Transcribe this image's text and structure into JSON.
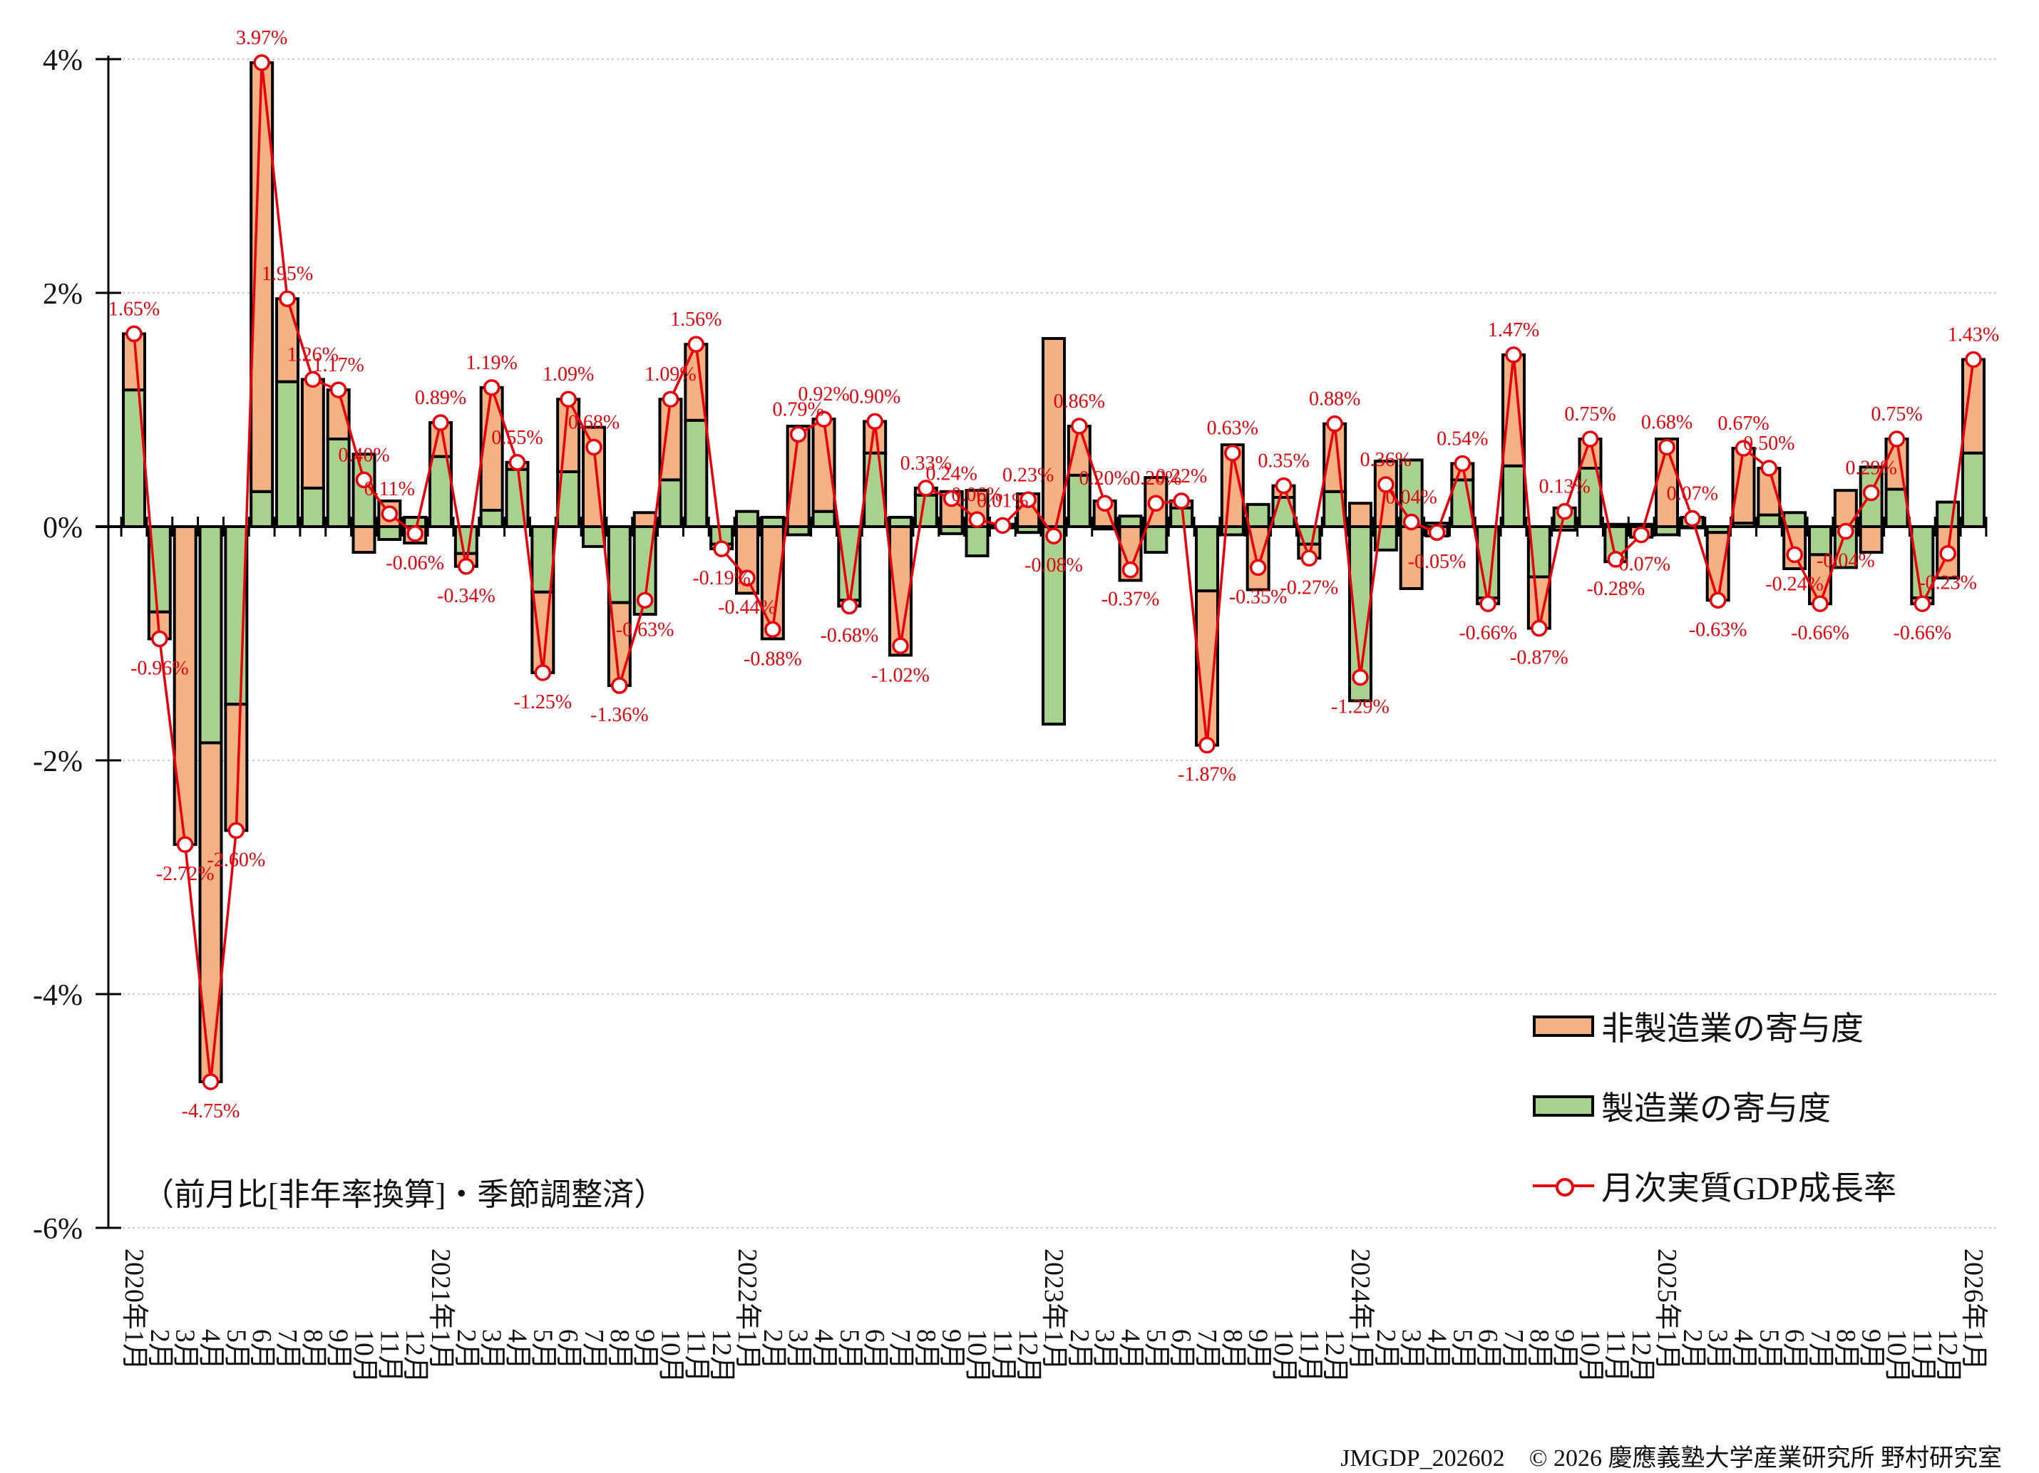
{
  "chart_data": {
    "type": "bar+line",
    "title": "",
    "subtitle": "（前月比[非年率換算]・季節調整済）",
    "xlabel": "",
    "ylabel": "",
    "ylim": [
      -6,
      4
    ],
    "y_ticks": [
      4,
      2,
      0,
      -2,
      -4,
      -6
    ],
    "y_tick_labels": [
      "4%",
      "2%",
      "0%",
      "-2%",
      "-4%",
      "-6%"
    ],
    "grid": "horizontal dotted",
    "legend_position": "lower right",
    "legend": [
      {
        "name": "非製造業の寄与度",
        "type": "bar",
        "color": "#f4b183"
      },
      {
        "name": "製造業の寄与度",
        "type": "bar",
        "color": "#a9d18e"
      },
      {
        "name": "月次実質GDP成長率",
        "type": "line",
        "color": "#e8000b"
      }
    ],
    "categories": [
      "2020年1月",
      "2月",
      "3月",
      "4月",
      "5月",
      "6月",
      "7月",
      "8月",
      "9月",
      "10月",
      "11月",
      "12月",
      "2021年1月",
      "2月",
      "3月",
      "4月",
      "5月",
      "6月",
      "7月",
      "8月",
      "9月",
      "10月",
      "11月",
      "12月",
      "2022年1月",
      "2月",
      "3月",
      "4月",
      "5月",
      "6月",
      "7月",
      "8月",
      "9月",
      "10月",
      "11月",
      "12月",
      "2023年1月",
      "2月",
      "3月",
      "4月",
      "5月",
      "6月",
      "7月",
      "8月",
      "9月",
      "10月",
      "11月",
      "12月",
      "2024年1月",
      "2月",
      "3月",
      "4月",
      "5月",
      "6月",
      "7月",
      "8月",
      "9月",
      "10月",
      "11月",
      "12月",
      "2025年1月",
      "2月",
      "3月",
      "4月",
      "5月",
      "6月",
      "7月",
      "8月",
      "9月",
      "10月",
      "11月",
      "12月",
      "2026年1月"
    ],
    "series": [
      {
        "name": "月次実質GDP成長率",
        "type": "line",
        "values": [
          1.65,
          -0.96,
          -2.72,
          -4.75,
          -2.6,
          3.97,
          1.95,
          1.26,
          1.17,
          0.4,
          0.11,
          -0.06,
          0.89,
          -0.34,
          1.19,
          0.55,
          -1.25,
          1.09,
          0.68,
          -1.36,
          -0.63,
          1.09,
          1.56,
          -0.19,
          -0.44,
          -0.88,
          0.79,
          0.92,
          -0.68,
          0.9,
          -1.02,
          0.33,
          0.24,
          0.06,
          0.01,
          0.23,
          -0.08,
          0.86,
          0.2,
          -0.37,
          0.2,
          0.22,
          -1.87,
          0.63,
          -0.35,
          0.35,
          -0.27,
          0.88,
          -1.29,
          0.36,
          0.04,
          -0.05,
          0.54,
          -0.66,
          1.47,
          -0.87,
          0.13,
          0.75,
          -0.28,
          -0.07,
          0.68,
          0.07,
          -0.63,
          0.67,
          0.5,
          -0.24,
          -0.66,
          -0.04,
          0.29,
          0.75,
          -0.66,
          -0.23,
          1.43
        ]
      },
      {
        "name": "製造業の寄与度",
        "type": "bar",
        "values": [
          1.17,
          -0.73,
          0.0,
          -1.85,
          -1.52,
          0.3,
          1.24,
          0.33,
          0.75,
          0.62,
          -0.11,
          0.08,
          0.6,
          -0.23,
          0.14,
          0.49,
          -0.56,
          0.47,
          -0.17,
          -0.65,
          -0.75,
          0.4,
          0.91,
          -0.15,
          0.13,
          0.08,
          -0.07,
          0.13,
          -0.63,
          0.63,
          0.08,
          0.27,
          -0.06,
          -0.25,
          -0.01,
          -0.05,
          -1.69,
          0.44,
          -0.02,
          0.09,
          -0.22,
          0.16,
          -0.55,
          -0.07,
          0.19,
          0.25,
          -0.15,
          0.3,
          -1.49,
          -0.2,
          0.57,
          0.03,
          0.4,
          -0.61,
          0.52,
          -0.43,
          0.16,
          0.5,
          -0.3,
          0.02,
          -0.07,
          0.08,
          -0.05,
          0.03,
          0.1,
          0.12,
          -0.24,
          -0.35,
          0.51,
          0.32,
          -0.61,
          0.21,
          0.63
        ]
      },
      {
        "name": "非製造業の寄与度",
        "type": "bar",
        "values": [
          0.48,
          -0.23,
          -2.72,
          -2.9,
          -1.08,
          3.67,
          0.71,
          0.93,
          0.42,
          -0.22,
          0.22,
          -0.14,
          0.29,
          -0.11,
          1.05,
          0.06,
          -0.69,
          0.62,
          0.85,
          -0.71,
          0.12,
          0.69,
          0.65,
          -0.04,
          -0.57,
          -0.96,
          0.86,
          0.79,
          -0.05,
          0.27,
          -1.1,
          0.06,
          0.3,
          0.31,
          0.02,
          0.28,
          1.61,
          0.42,
          0.22,
          -0.46,
          0.42,
          0.06,
          -1.32,
          0.7,
          -0.54,
          0.1,
          -0.12,
          0.58,
          0.2,
          0.56,
          -0.53,
          -0.08,
          0.14,
          -0.05,
          0.95,
          -0.44,
          -0.03,
          0.25,
          0.02,
          -0.09,
          0.75,
          -0.01,
          -0.58,
          0.64,
          0.4,
          -0.36,
          -0.42,
          0.31,
          -0.22,
          0.43,
          -0.05,
          -0.44,
          0.8
        ]
      }
    ],
    "point_labels": [
      "1.65%",
      "-0.96%",
      "-2.72%",
      "-4.75%",
      "-2.60%",
      "3.97%",
      "1.95%",
      "1.26%",
      "1.17%",
      "0.40%",
      "0.11%",
      "-0.06%",
      "0.89%",
      "-0.34%",
      "1.19%",
      "0.55%",
      "-1.25%",
      "1.09%",
      "0.68%",
      "-1.36%",
      "-0.63%",
      "1.09%",
      "1.56%",
      "-0.19%",
      "-0.44%",
      "-0.88%",
      "0.79%",
      "0.92%",
      "-0.68%",
      "0.90%",
      "-1.02%",
      "0.33%",
      "0.24%",
      "0.06%",
      "0.01%",
      "0.23%",
      "-0.08%",
      "0.86%",
      "0.20%",
      "-0.37%",
      "0.20%",
      "0.22%",
      "-1.87%",
      "0.63%",
      "-0.35%",
      "0.35%",
      "-0.27%",
      "0.88%",
      "-1.29%",
      "0.36%",
      "0.04%",
      "-0.05%",
      "0.54%",
      "-0.66%",
      "1.47%",
      "-0.87%",
      "0.13%",
      "0.75%",
      "-0.28%",
      "-0.07%",
      "0.68%",
      "0.07%",
      "-0.63%",
      "0.67%",
      "0.50%",
      "-0.24%",
      "-0.66%",
      "-0.04%",
      "0.29%",
      "0.75%",
      "-0.66%",
      "-0.23%",
      "1.43%"
    ]
  },
  "legend": {
    "non_manufacturing": "非製造業の寄与度",
    "manufacturing": "製造業の寄与度",
    "gdp_growth": "月次実質GDP成長率"
  },
  "subtitle": "（前月比[非年率換算]・季節調整済）",
  "footer": "JMGDP_202602　© 2026 慶應義塾大学産業研究所 野村研究室",
  "colors": {
    "non_manufacturing": "#f4b183",
    "manufacturing": "#a9d18e",
    "line": "#e8000b",
    "grid": "#cccccc",
    "axis": "#000000"
  }
}
